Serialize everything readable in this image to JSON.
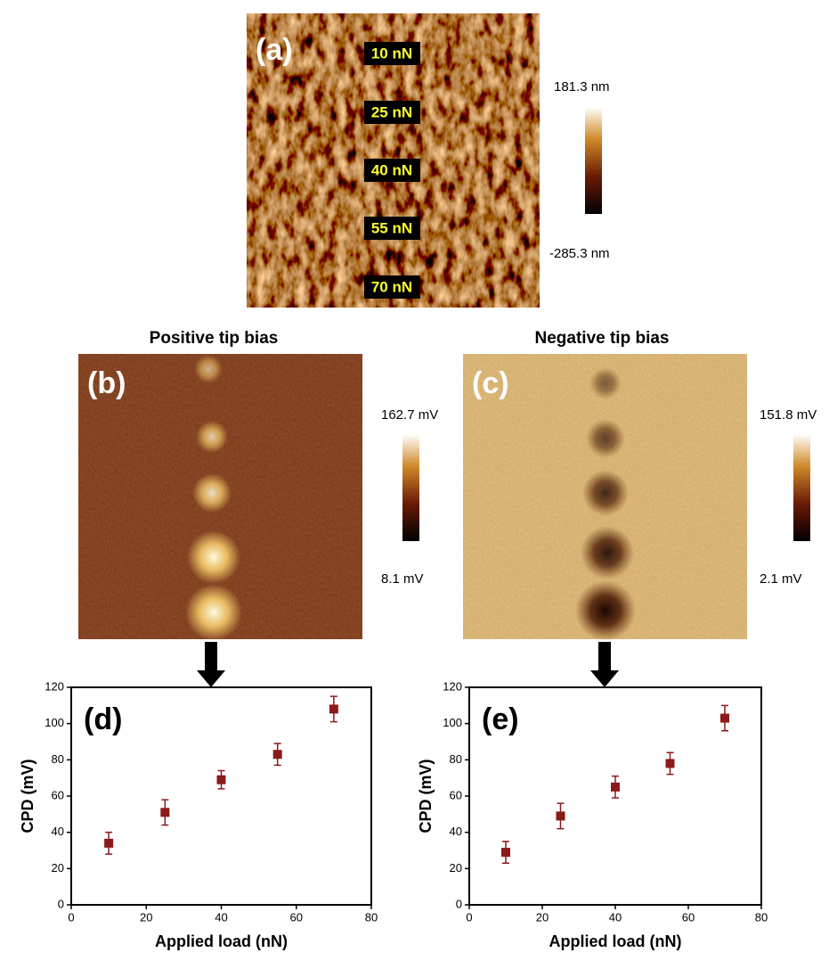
{
  "panels": [
    {
      "label": "(a)",
      "force_labels": [
        "10 nN",
        "25 nN",
        "40 nN",
        "55 nN",
        "70 nN"
      ],
      "scale_max": "181.3 nm",
      "scale_min": "-285.3 nm"
    },
    {
      "title": "Positive tip bias",
      "label": "(b)",
      "scale_max": "162.7 mV",
      "scale_min": "8.1 mV"
    },
    {
      "title": "Negative tip bias",
      "label": "(c)",
      "scale_max": "151.8 mV",
      "scale_min": "2.1 mV"
    }
  ],
  "chart_data": [
    {
      "type": "scatter",
      "label": "(d)",
      "x_label": "Applied load (nN)",
      "y_label": "CPD (mV)",
      "series": [
        {
          "color": "#8b1a1a",
          "x": [
            10,
            25,
            40,
            55,
            70
          ],
          "values": [
            34,
            51,
            69,
            83,
            108
          ],
          "errors": [
            6,
            7,
            5,
            6,
            7
          ]
        }
      ],
      "xlim": [
        0,
        80
      ],
      "xticks": [
        0,
        20,
        40,
        60,
        80
      ],
      "ylim": [
        0,
        120
      ],
      "yticks": [
        0,
        20,
        40,
        60,
        80,
        100,
        120
      ]
    },
    {
      "type": "scatter",
      "label": "(e)",
      "x_label": "Applied load (nN)",
      "y_label": "CPD (mV)",
      "series": [
        {
          "color": "#8b1a1a",
          "x": [
            10,
            25,
            40,
            55,
            70
          ],
          "values": [
            29,
            49,
            65,
            78,
            103
          ],
          "errors": [
            6,
            7,
            6,
            6,
            7
          ]
        }
      ],
      "xlim": [
        0,
        80
      ],
      "xticks": [
        0,
        20,
        40,
        60,
        80
      ],
      "ylim": [
        0,
        120
      ],
      "yticks": [
        0,
        20,
        40,
        60,
        80,
        100,
        120
      ]
    }
  ]
}
